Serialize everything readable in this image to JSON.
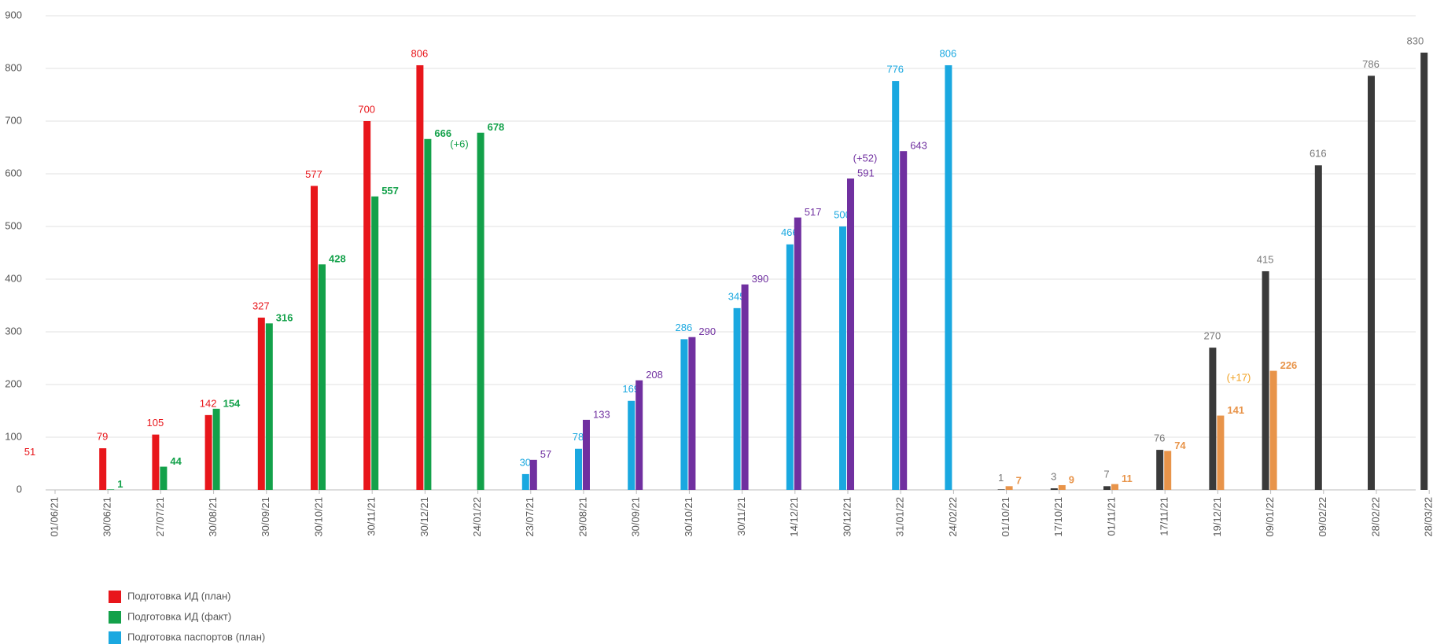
{
  "chart_data": {
    "type": "bar",
    "categories": [
      "01/06/21",
      "30/06/21",
      "27/07/21",
      "30/08/21",
      "30/09/21",
      "30/10/21",
      "30/11/21",
      "30/12/21",
      "24/01/22",
      "23/07/21",
      "29/08/21",
      "30/09/21",
      "30/10/21",
      "30/11/21",
      "14/12/21",
      "30/12/21",
      "31/01/22",
      "24/02/22",
      "01/10/21",
      "17/10/21",
      "01/11/21",
      "17/11/21",
      "19/12/21",
      "09/01/22",
      "09/02/22",
      "28/02/22",
      "28/03/22"
    ],
    "series": [
      {
        "name": "Подготовка ИД (план)",
        "color": "#e8161b",
        "values": [
          null,
          79,
          105,
          142,
          327,
          577,
          700,
          806,
          null,
          null,
          null,
          null,
          null,
          null,
          null,
          null,
          null,
          null,
          null,
          null,
          null,
          null,
          null,
          null,
          null,
          null,
          null
        ]
      },
      {
        "name": "Подготовка ИД (факт)",
        "color": "#13a14a",
        "values": [
          null,
          1,
          44,
          154,
          316,
          428,
          557,
          666,
          678,
          null,
          null,
          null,
          null,
          null,
          null,
          null,
          null,
          null,
          null,
          null,
          null,
          null,
          null,
          null,
          null,
          null,
          null
        ]
      },
      {
        "name": "Подготовка паспортов (план)",
        "color": "#1aa8e0",
        "values": [
          null,
          null,
          null,
          null,
          null,
          null,
          null,
          null,
          null,
          30,
          78,
          169,
          286,
          345,
          466,
          500,
          776,
          806,
          null,
          null,
          null,
          null,
          null,
          null,
          null,
          null,
          null
        ]
      },
      {
        "color": "#7030a0",
        "values": [
          null,
          null,
          null,
          null,
          null,
          null,
          null,
          null,
          null,
          57,
          133,
          208,
          290,
          390,
          517,
          591,
          643,
          null,
          null,
          null,
          null,
          null,
          null,
          null,
          null,
          null,
          null
        ]
      },
      {
        "color": "#3a3a3a",
        "values": [
          null,
          null,
          null,
          null,
          null,
          null,
          null,
          null,
          null,
          null,
          null,
          null,
          null,
          null,
          null,
          null,
          null,
          null,
          1,
          3,
          7,
          76,
          270,
          415,
          616,
          786,
          830
        ]
      },
      {
        "color": "#e8944a",
        "values": [
          null,
          null,
          null,
          null,
          null,
          null,
          null,
          null,
          null,
          null,
          null,
          null,
          null,
          null,
          null,
          null,
          null,
          null,
          7,
          9,
          11,
          74,
          141,
          226,
          null,
          null,
          null
        ]
      }
    ],
    "annotations": [
      "51",
      "(+6)",
      "(+52)",
      "(+17)"
    ],
    "ylim": [
      0,
      900
    ],
    "yticks": [
      0,
      100,
      200,
      300,
      400,
      500,
      600,
      700,
      800,
      900
    ],
    "grid": true
  }
}
